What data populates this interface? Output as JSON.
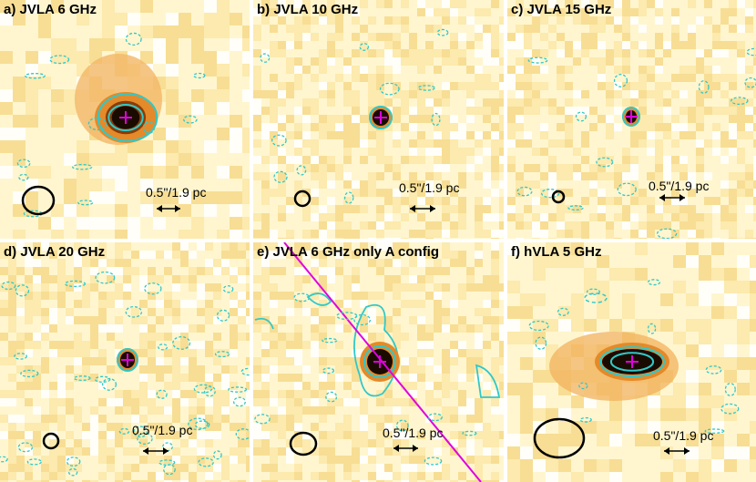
{
  "panels": [
    {
      "title": "a) JVLA 6 GHz",
      "scale_label": "0.5\"/1.9 pc"
    },
    {
      "title": "b) JVLA 10 GHz",
      "scale_label": "0.5\"/1.9 pc"
    },
    {
      "title": "c) JVLA 15 GHz",
      "scale_label": "0.5\"/1.9 pc"
    },
    {
      "title": "d) JVLA 20 GHz",
      "scale_label": "0.5\"/1.9 pc"
    },
    {
      "title": "e) JVLA 6 GHz only A config",
      "scale_label": "0.5\"/1.9 pc"
    },
    {
      "title": "f) hVLA 5 GHz",
      "scale_label": "0.5\"/1.9 pc"
    }
  ],
  "colors": {
    "background_pale": "#fff6cf",
    "background_mid": "#f6d98a",
    "core_orange": "#e48a2a",
    "core_dark": "#1a0b00",
    "contour": "#31c8c8",
    "marker": "#e000e0",
    "beam": "#000000"
  }
}
